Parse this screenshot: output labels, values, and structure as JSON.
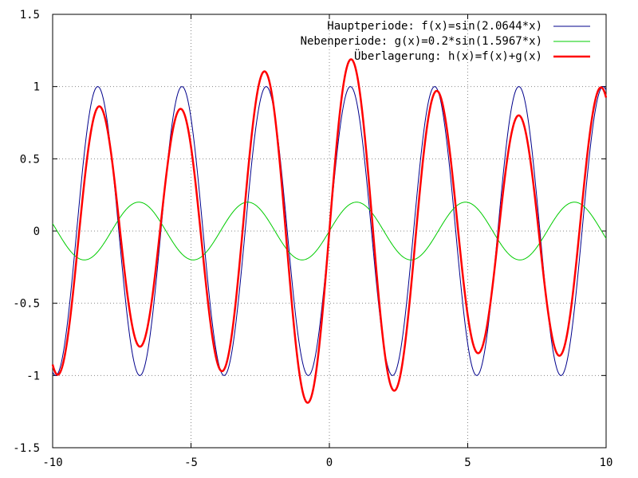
{
  "chart_data": {
    "type": "line",
    "title": "",
    "xlabel": "",
    "ylabel": "",
    "xlim": [
      -10,
      10
    ],
    "ylim": [
      -1.5,
      1.5
    ],
    "grid": true,
    "grid_style": "dotted",
    "legend_position": "top-right",
    "x_ticks": [
      -10,
      -5,
      0,
      5,
      10
    ],
    "x_tick_labels": [
      "-10",
      "-5",
      "0",
      "5",
      "10"
    ],
    "y_ticks": [
      -1.5,
      -1,
      -0.5,
      0,
      0.5,
      1,
      1.5
    ],
    "y_tick_labels": [
      "-1.5",
      "-1",
      "-0.5",
      "0",
      "0.5",
      "1",
      "1.5"
    ],
    "series": [
      {
        "name": "Hauptperiode: f(x)=sin(2.0644*x)",
        "color": "#00008b",
        "amplitude": 1,
        "frequency": 2.0644,
        "components": [
          [
            1,
            2.0644
          ]
        ]
      },
      {
        "name": "Nebenperiode: g(x)=0.2*sin(1.5967*x)",
        "color": "#00cc00",
        "amplitude": 0.2,
        "frequency": 1.5967,
        "components": [
          [
            0.2,
            1.5967
          ]
        ]
      },
      {
        "name": "Überlagerung: h(x)=f(x)+g(x)",
        "color": "#ff0000",
        "components": [
          [
            1,
            2.0644
          ],
          [
            0.2,
            1.5967
          ]
        ]
      }
    ]
  }
}
